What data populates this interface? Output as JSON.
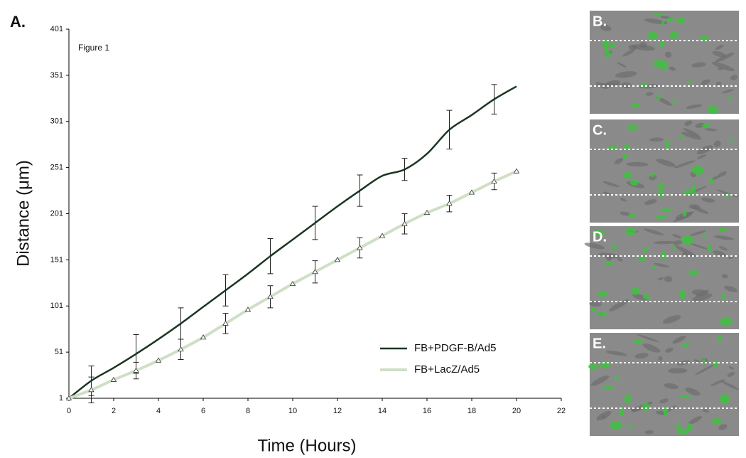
{
  "figure_label": "A.",
  "chart_data": {
    "type": "line",
    "annotation": "Figure 1",
    "x_label": "Time (Hours)",
    "y_label": "Distance (μm)",
    "x": [
      0,
      1,
      2,
      3,
      4,
      5,
      6,
      7,
      8,
      9,
      10,
      11,
      12,
      13,
      14,
      15,
      16,
      17,
      18,
      19,
      20
    ],
    "xlim": [
      0,
      22
    ],
    "xticks": [
      0,
      2,
      4,
      6,
      8,
      10,
      12,
      14,
      16,
      18,
      20,
      22
    ],
    "ylim": [
      1,
      401
    ],
    "yticks": [
      1,
      51,
      101,
      151,
      201,
      251,
      301,
      351,
      401
    ],
    "legend": "lower right",
    "series": [
      {
        "name": "FB+PDGF-B/Ad5",
        "color": "#1c3522",
        "markers": false,
        "values": [
          1,
          20,
          34,
          49,
          65,
          82,
          100,
          118,
          136,
          155,
          173,
          191,
          209,
          226,
          242,
          249,
          266,
          292,
          308,
          325,
          339
        ],
        "errors": [
          null,
          16,
          null,
          21,
          null,
          17,
          null,
          17,
          null,
          19,
          null,
          18,
          null,
          17,
          null,
          12,
          null,
          21,
          null,
          16,
          null
        ]
      },
      {
        "name": "FB+LacZ/Ad5",
        "color": "#cfdfc6",
        "markers": true,
        "values": [
          1,
          10,
          21,
          31,
          42,
          54,
          67,
          82,
          97,
          111,
          125,
          138,
          151,
          164,
          177,
          190,
          202,
          212,
          224,
          236,
          247
        ],
        "errors": [
          null,
          14,
          null,
          9,
          null,
          11,
          null,
          11,
          null,
          12,
          null,
          12,
          null,
          11,
          null,
          11,
          null,
          9,
          null,
          9,
          null
        ]
      }
    ]
  },
  "panels": [
    {
      "label": "B."
    },
    {
      "label": "C."
    },
    {
      "label": "D."
    },
    {
      "label": "E."
    }
  ]
}
